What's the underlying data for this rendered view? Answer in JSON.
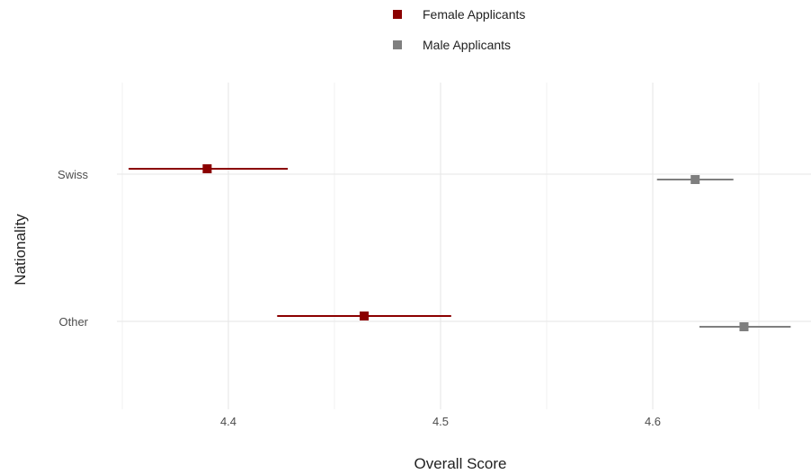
{
  "chart_data": {
    "type": "scatter",
    "subtype": "dot-and-errorbar",
    "xlabel": "Overall Score",
    "ylabel": "Nationality",
    "xlim": [
      4.35,
      4.67
    ],
    "x_ticks": [
      4.4,
      4.5,
      4.6
    ],
    "x_tick_labels": [
      "4.4",
      "4.5",
      "4.6"
    ],
    "categories": [
      "Swiss",
      "Other"
    ],
    "grid": true,
    "legend_position": "top",
    "series": [
      {
        "name": "Female Applicants",
        "color": "#8b0000",
        "points": [
          {
            "category": "Swiss",
            "value": 4.39,
            "low": 4.353,
            "high": 4.428
          },
          {
            "category": "Other",
            "value": 4.464,
            "low": 4.423,
            "high": 4.505
          }
        ]
      },
      {
        "name": "Male Applicants",
        "color": "#7f7f7f",
        "points": [
          {
            "category": "Swiss",
            "value": 4.62,
            "low": 4.602,
            "high": 4.638
          },
          {
            "category": "Other",
            "value": 4.643,
            "low": 4.622,
            "high": 4.665
          }
        ]
      }
    ]
  }
}
